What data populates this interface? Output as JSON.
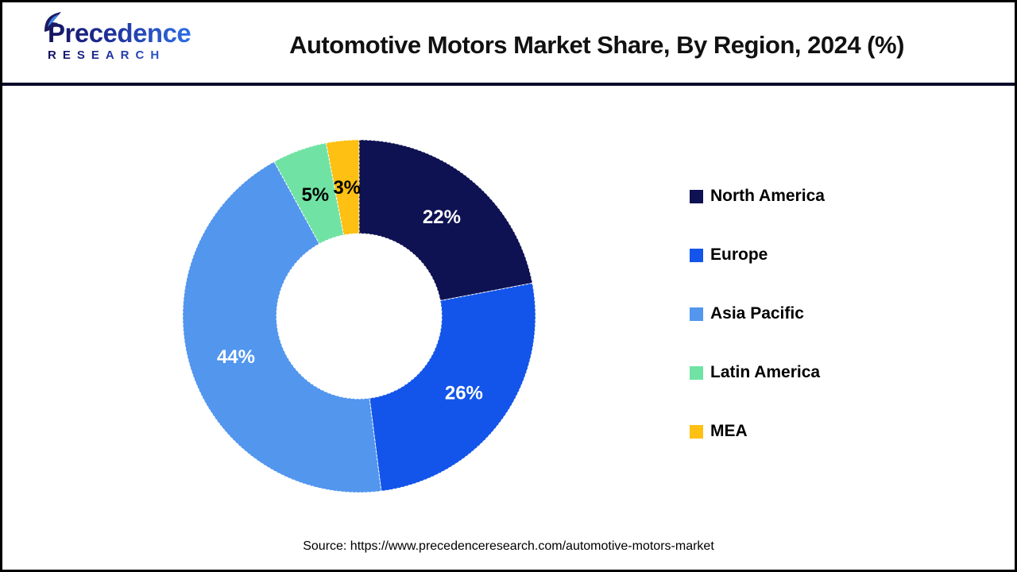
{
  "header": {
    "logo": {
      "brand": "Precedence",
      "sub": "RESEARCH"
    },
    "title": "Automotive Motors Market Share, By Region, 2024 (%)"
  },
  "chart_data": {
    "type": "pie",
    "subtype": "donut",
    "title": "Automotive Motors Market Share, By Region, 2024 (%)",
    "categories": [
      "North America",
      "Europe",
      "Asia Pacific",
      "Latin America",
      "MEA"
    ],
    "values": [
      22,
      26,
      44,
      5,
      3
    ],
    "unit": "%",
    "colors": [
      "#0e1152",
      "#1355ea",
      "#5296ee",
      "#70e3a4",
      "#fdc013"
    ],
    "label_colors": [
      "#ffffff",
      "#ffffff",
      "#ffffff",
      "#000000",
      "#000000"
    ],
    "start_angle_deg": 0,
    "direction": "clockwise",
    "legend_position": "right"
  },
  "footer": {
    "source": "Source: https://www.precedenceresearch.com/automotive-motors-market"
  }
}
